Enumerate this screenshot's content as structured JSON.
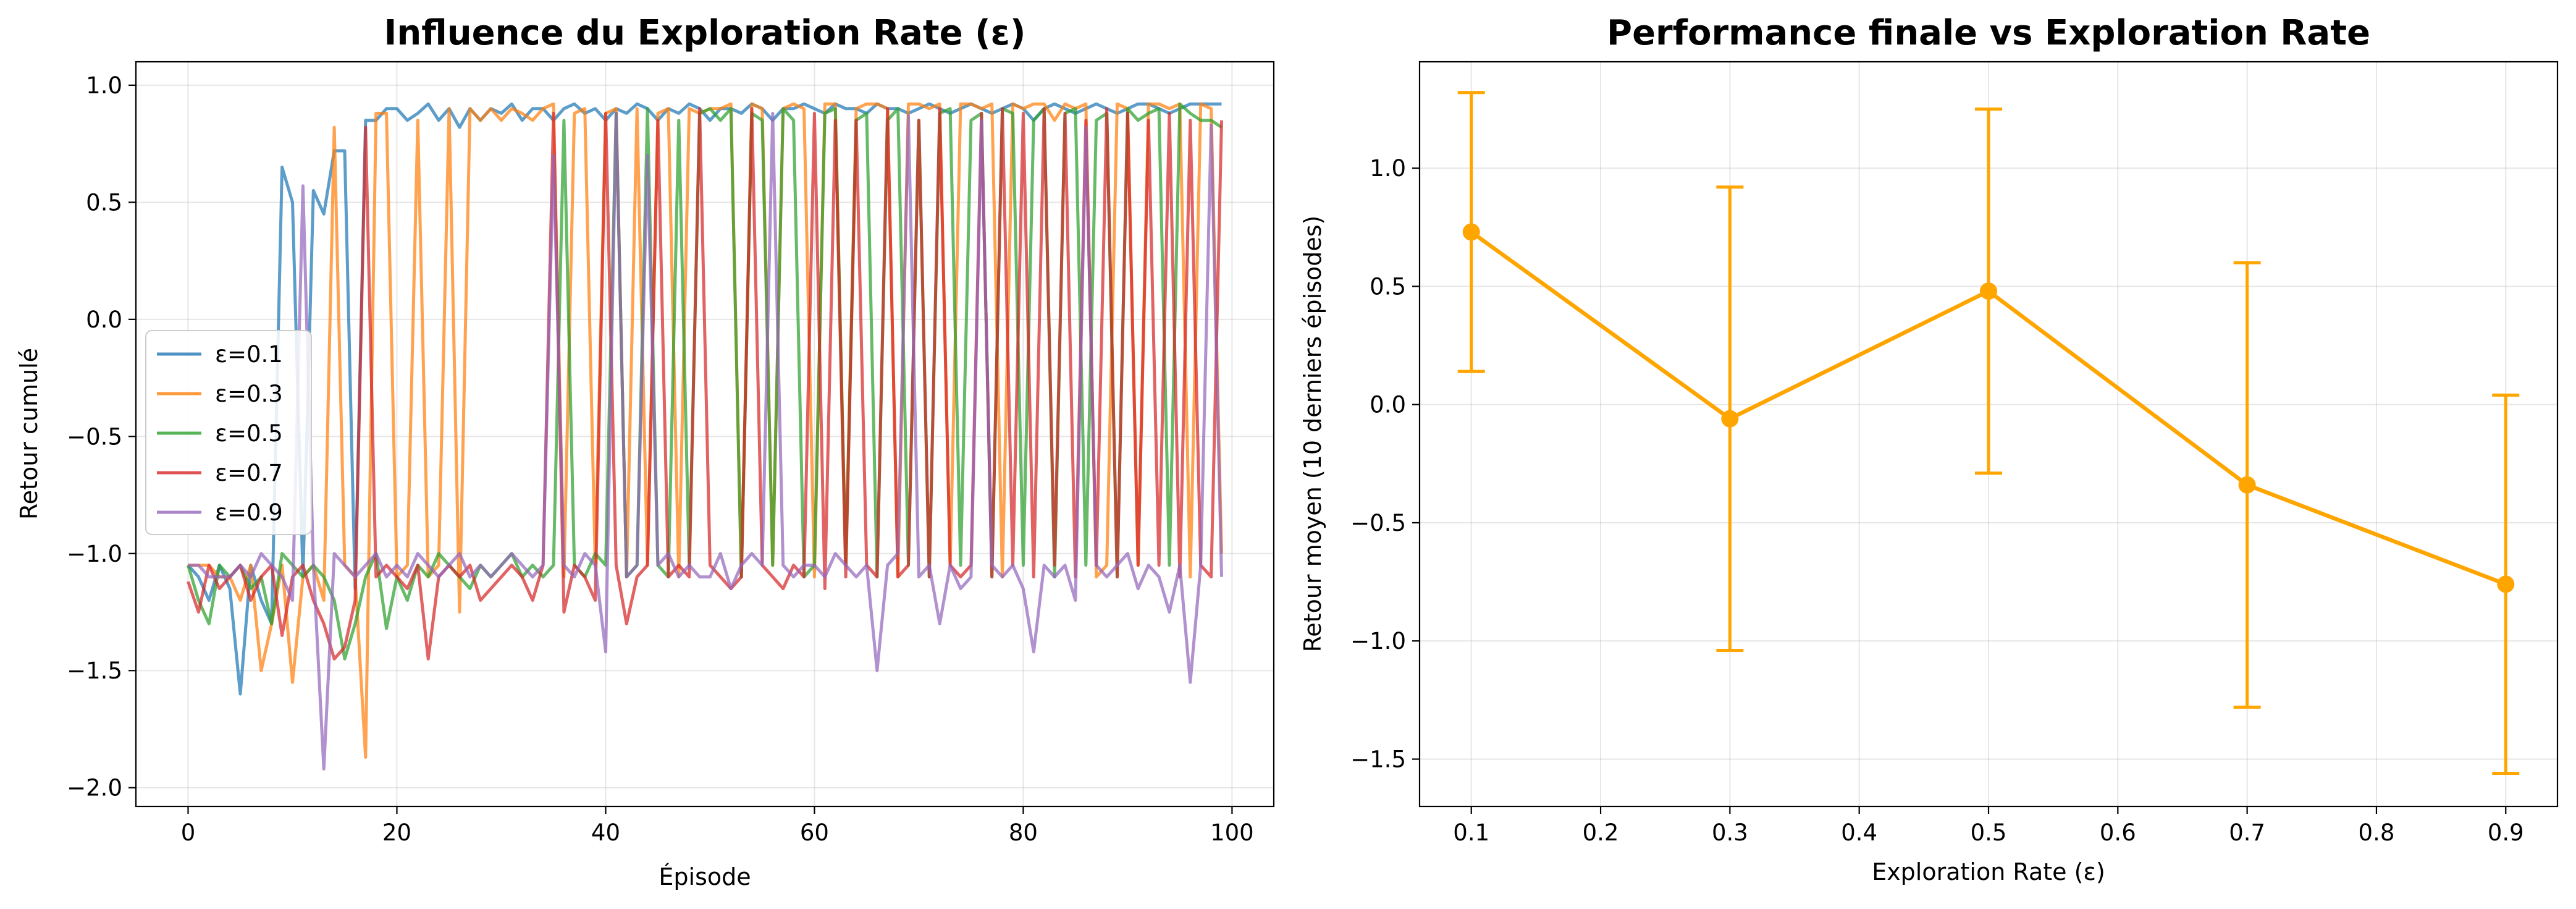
{
  "chart_data": [
    {
      "type": "line",
      "title": "Influence du Exploration Rate (ε)",
      "xlabel": "Épisode",
      "ylabel": "Retour cumulé",
      "xlim": [
        -5,
        104
      ],
      "ylim": [
        -2.08,
        1.1
      ],
      "xticks": [
        0,
        20,
        40,
        60,
        80,
        100
      ],
      "yticks": [
        -2.0,
        -1.5,
        -1.0,
        -0.5,
        0.0,
        0.5,
        1.0
      ],
      "xtick_labels": [
        "0",
        "20",
        "40",
        "60",
        "80",
        "100"
      ],
      "ytick_labels": [
        "−2.0",
        "−1.5",
        "−1.0",
        "−0.5",
        "0.0",
        "0.5",
        "1.0"
      ],
      "grid": true,
      "legend_position": "center-left",
      "series": [
        {
          "name": "ε=0.1",
          "color": "#1f77b4",
          "values": [
            -1.05,
            -1.1,
            -1.2,
            -1.05,
            -1.15,
            -1.6,
            -1.05,
            -1.2,
            -1.3,
            0.65,
            0.5,
            -1.1,
            0.55,
            0.45,
            0.72,
            0.72,
            -1.15,
            0.85,
            0.85,
            0.9,
            0.9,
            0.85,
            0.88,
            0.92,
            0.85,
            0.9,
            0.82,
            0.9,
            0.85,
            0.9,
            0.88,
            0.92,
            0.85,
            0.9,
            0.9,
            0.85,
            0.9,
            0.92,
            0.88,
            0.9,
            0.85,
            0.9,
            0.88,
            0.92,
            0.9,
            0.85,
            0.9,
            0.88,
            0.92,
            0.9,
            0.85,
            0.9,
            0.9,
            0.88,
            0.92,
            0.9,
            0.85,
            0.9,
            0.9,
            0.92,
            0.9,
            0.88,
            0.92,
            0.9,
            0.9,
            0.88,
            0.92,
            0.9,
            0.9,
            0.88,
            0.9,
            0.92,
            0.9,
            0.88,
            0.9,
            0.92,
            0.9,
            0.88,
            0.9,
            0.92,
            0.9,
            0.85,
            0.9,
            0.92,
            0.9,
            0.88,
            0.9,
            0.92,
            0.9,
            0.88,
            0.9,
            0.92,
            0.92,
            0.9,
            0.88,
            0.9,
            0.92,
            0.92,
            0.92,
            0.92
          ]
        },
        {
          "name": "ε=0.3",
          "color": "#ff7f0e",
          "values": [
            -1.05,
            -1.05,
            -1.05,
            -1.1,
            -1.1,
            -1.2,
            -1.05,
            -1.5,
            -1.3,
            -1.05,
            -1.55,
            -1.1,
            -1.05,
            -1.2,
            0.82,
            -1.05,
            -1.1,
            -1.87,
            0.88,
            0.88,
            -1.1,
            -1.05,
            0.85,
            -1.1,
            -1.05,
            0.9,
            -1.25,
            0.9,
            0.85,
            0.9,
            0.85,
            0.9,
            0.88,
            0.85,
            0.9,
            0.92,
            -1.1,
            0.88,
            0.9,
            -1.05,
            0.88,
            0.9,
            -1.1,
            0.9,
            -1.05,
            0.88,
            0.9,
            -1.1,
            0.9,
            0.88,
            0.9,
            0.9,
            0.92,
            -1.1,
            0.92,
            0.9,
            -1.05,
            0.9,
            0.92,
            0.9,
            -1.1,
            0.92,
            0.92,
            -1.05,
            0.9,
            0.92,
            0.92,
            0.9,
            -1.1,
            0.92,
            0.92,
            0.9,
            0.92,
            -1.05,
            0.92,
            0.92,
            0.9,
            0.92,
            -1.1,
            0.92,
            0.9,
            0.92,
            0.92,
            0.85,
            0.92,
            0.9,
            0.92,
            -1.1,
            -1.05,
            0.92,
            0.9,
            -1.05,
            0.92,
            0.92,
            0.9,
            0.92,
            -1.1,
            0.92,
            0.9,
            -1.0
          ]
        },
        {
          "name": "ε=0.5",
          "color": "#2ca02c",
          "values": [
            -1.05,
            -1.2,
            -1.3,
            -1.05,
            -1.1,
            -1.05,
            -1.15,
            -1.1,
            -1.3,
            -1.0,
            -1.05,
            -1.1,
            -1.05,
            -1.1,
            -1.2,
            -1.45,
            -1.3,
            -1.1,
            -1.0,
            -1.32,
            -1.1,
            -1.2,
            -1.05,
            -1.1,
            -1.0,
            -1.05,
            -1.1,
            -1.15,
            -1.05,
            -1.1,
            -1.05,
            -1.0,
            -1.1,
            -1.05,
            -1.1,
            -1.05,
            0.85,
            -1.05,
            -1.1,
            -1.0,
            -1.05,
            0.88,
            -1.1,
            -1.05,
            0.9,
            -1.05,
            -1.1,
            0.85,
            -1.05,
            0.88,
            0.9,
            0.85,
            0.9,
            -1.1,
            0.88,
            0.85,
            -1.05,
            0.9,
            0.85,
            -1.1,
            -1.05,
            0.88,
            0.9,
            -1.05,
            0.85,
            0.88,
            -1.1,
            0.85,
            0.9,
            -1.05,
            0.85,
            -1.1,
            0.88,
            0.9,
            -1.05,
            0.85,
            0.88,
            -1.1,
            0.9,
            0.88,
            -1.05,
            0.85,
            0.9,
            -1.1,
            0.88,
            0.9,
            -1.05,
            0.85,
            0.88,
            -1.1,
            0.9,
            0.85,
            0.88,
            0.9,
            -1.05,
            0.92,
            0.88,
            0.85,
            0.85,
            0.82
          ]
        },
        {
          "name": "ε=0.7",
          "color": "#d62728",
          "values": [
            -1.12,
            -1.25,
            -1.05,
            -1.15,
            -1.1,
            -1.05,
            -1.2,
            -1.1,
            -1.05,
            -1.35,
            -1.1,
            -1.05,
            -1.2,
            -1.3,
            -1.45,
            -1.4,
            -1.2,
            0.82,
            -1.1,
            -1.05,
            -1.1,
            -1.15,
            -1.05,
            -1.45,
            -1.1,
            -1.05,
            -1.1,
            -1.05,
            -1.2,
            -1.15,
            -1.1,
            -1.05,
            -1.1,
            -1.2,
            -1.05,
            0.88,
            -1.25,
            -1.05,
            -1.1,
            -1.2,
            0.88,
            -1.05,
            -1.3,
            -1.1,
            -1.05,
            0.85,
            -1.1,
            -1.05,
            -1.1,
            0.9,
            -1.05,
            -1.1,
            -1.15,
            -1.1,
            0.9,
            -1.05,
            -1.1,
            -1.15,
            -1.05,
            -1.1,
            0.88,
            -1.15,
            0.85,
            -1.1,
            0.85,
            -1.05,
            -1.1,
            0.9,
            -1.1,
            -1.05,
            0.85,
            -1.1,
            0.9,
            -1.05,
            -1.1,
            -1.05,
            0.88,
            -1.1,
            0.9,
            -1.05,
            0.88,
            -1.1,
            0.9,
            -1.05,
            0.88,
            -1.1,
            0.85,
            -1.05,
            0.9,
            -1.1,
            0.88,
            -1.05,
            0.85,
            -1.05,
            0.88,
            -1.1,
            0.85,
            -1.05,
            -1.1,
            0.85
          ]
        },
        {
          "name": "ε=0.9",
          "color": "#9467bd",
          "values": [
            -1.05,
            -1.05,
            -1.1,
            -1.1,
            -1.1,
            -1.05,
            -1.1,
            -1.0,
            -1.05,
            -1.1,
            -1.2,
            0.57,
            -1.05,
            -1.92,
            -1.0,
            -1.05,
            -1.1,
            -1.05,
            -1.0,
            -1.1,
            -1.05,
            -1.1,
            -1.0,
            -1.05,
            -1.1,
            -1.05,
            -1.0,
            -1.1,
            -1.05,
            -1.1,
            -1.05,
            -1.0,
            -1.05,
            -1.1,
            -1.05,
            0.7,
            -1.05,
            -1.1,
            -1.0,
            -1.05,
            -1.42,
            0.88,
            -1.1,
            -1.05,
            0.7,
            -1.05,
            -1.0,
            -1.1,
            -1.05,
            -1.1,
            -1.1,
            -1.0,
            -1.15,
            -1.05,
            -1.0,
            -1.05,
            0.88,
            -1.05,
            -1.1,
            -1.05,
            -1.05,
            -1.1,
            -1.0,
            -1.05,
            -1.1,
            -1.05,
            -1.5,
            -1.05,
            -1.0,
            0.87,
            -1.1,
            -1.05,
            -1.3,
            -1.05,
            -1.15,
            -1.1,
            0.85,
            -1.05,
            -1.1,
            -1.05,
            -1.15,
            -1.42,
            -1.05,
            -1.1,
            -1.05,
            -1.2,
            0.82,
            -1.05,
            -1.1,
            -1.05,
            -1.0,
            -1.15,
            -1.05,
            -1.1,
            -1.25,
            -1.05,
            -1.55,
            -1.05,
            0.83,
            -1.1
          ]
        }
      ]
    },
    {
      "type": "line",
      "title": "Performance finale vs Exploration Rate",
      "xlabel": "Exploration Rate (ε)",
      "ylabel": "Retour moyen (10 derniers épisodes)",
      "xlim": [
        0.06,
        0.94
      ],
      "ylim": [
        -1.7,
        1.45
      ],
      "xticks": [
        0.1,
        0.2,
        0.3,
        0.4,
        0.5,
        0.6,
        0.7,
        0.8,
        0.9
      ],
      "yticks": [
        -1.5,
        -1.0,
        -0.5,
        0.0,
        0.5,
        1.0
      ],
      "xtick_labels": [
        "0.1",
        "0.2",
        "0.3",
        "0.4",
        "0.5",
        "0.6",
        "0.7",
        "0.8",
        "0.9"
      ],
      "ytick_labels": [
        "−1.5",
        "−1.0",
        "−0.5",
        "0.0",
        "0.5",
        "1.0"
      ],
      "grid": true,
      "color": "#ffa500",
      "x": [
        0.1,
        0.3,
        0.5,
        0.7,
        0.9
      ],
      "y": [
        0.73,
        -0.06,
        0.48,
        -0.34,
        -0.76
      ],
      "yerr": [
        0.59,
        0.98,
        0.77,
        0.94,
        0.8
      ]
    }
  ]
}
